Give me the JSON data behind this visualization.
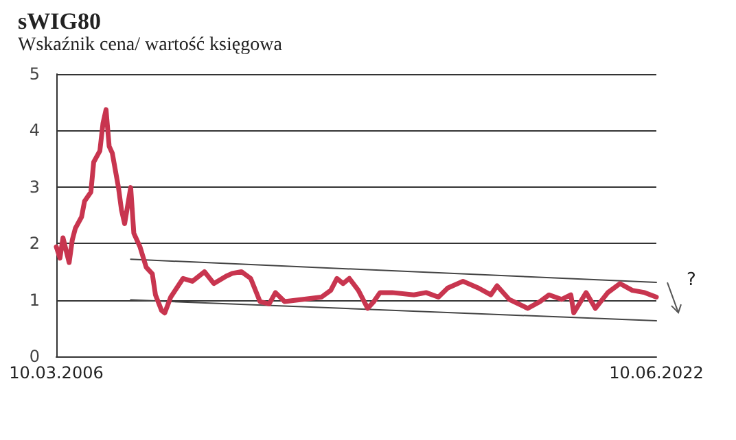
{
  "chart_data": {
    "type": "line",
    "title": "sWIG80",
    "subtitle": "Wskaźnik cena/ wartość księgowa",
    "xlim": [
      "2006-03-10",
      "2022-06-10"
    ],
    "xticks": [
      {
        "value": "2006-03-10",
        "label": "10.03.2006"
      },
      {
        "value": "2022-06-10",
        "label": "10.06.2022"
      }
    ],
    "ylim": [
      0,
      5
    ],
    "yticks": [
      0,
      1,
      2,
      3,
      4,
      5
    ],
    "grid": "y",
    "marker": "none",
    "line_style": "solid",
    "series": [
      {
        "color": "#c8354f",
        "x": [
          "2006-03-10",
          "2006-04",
          "2006-05",
          "2006-07",
          "2006-08",
          "2006-09",
          "2006-11",
          "2006-12",
          "2007-02",
          "2007-03",
          "2007-05",
          "2007-06",
          "2007-07",
          "2007-08",
          "2007-09",
          "2007-11",
          "2007-12",
          "2008-01",
          "2008-03",
          "2008-04",
          "2008-06",
          "2008-08",
          "2008-10",
          "2008-11",
          "2009-01",
          "2009-02",
          "2009-04",
          "2009-08",
          "2009-11",
          "2010-03",
          "2010-06",
          "2010-10",
          "2010-12",
          "2011-03",
          "2011-06",
          "2011-09",
          "2011-12",
          "2012-02",
          "2012-05",
          "2012-11",
          "2013-05",
          "2013-08",
          "2013-10",
          "2013-12",
          "2014-02",
          "2014-05",
          "2014-08",
          "2014-10",
          "2014-12",
          "2015-04",
          "2015-11",
          "2016-03",
          "2016-07",
          "2016-10",
          "2017-03",
          "2017-08",
          "2017-12",
          "2018-02",
          "2018-06",
          "2018-12",
          "2019-04",
          "2019-07",
          "2019-11",
          "2020-02",
          "2020-03",
          "2020-07",
          "2020-10",
          "2021-02",
          "2021-06",
          "2021-10",
          "2022-02",
          "2022-06-10"
        ],
        "values": [
          1.94,
          1.74,
          2.1,
          1.66,
          2.06,
          2.27,
          2.47,
          2.75,
          2.91,
          3.44,
          3.64,
          4.13,
          4.37,
          3.72,
          3.6,
          2.99,
          2.59,
          2.35,
          2.99,
          2.18,
          1.94,
          1.58,
          1.46,
          1.09,
          0.81,
          0.77,
          1.05,
          1.38,
          1.33,
          1.5,
          1.29,
          1.42,
          1.47,
          1.5,
          1.38,
          0.97,
          0.93,
          1.13,
          0.97,
          1.01,
          1.05,
          1.17,
          1.38,
          1.29,
          1.38,
          1.17,
          0.85,
          0.97,
          1.13,
          1.13,
          1.09,
          1.13,
          1.05,
          1.21,
          1.33,
          1.21,
          1.09,
          1.25,
          1.01,
          0.85,
          0.97,
          1.09,
          1.01,
          1.09,
          0.77,
          1.13,
          0.85,
          1.13,
          1.29,
          1.17,
          1.13,
          1.05
        ]
      },
      {
        "color": "#444444",
        "x": [
          "2008-03",
          "2022-06-10"
        ],
        "values": [
          1.72,
          1.31
        ]
      },
      {
        "color": "#444444",
        "x": [
          "2008-03",
          "2022-06-10"
        ],
        "values": [
          1.0,
          0.63
        ]
      }
    ],
    "annotations": [
      "?"
    ]
  }
}
